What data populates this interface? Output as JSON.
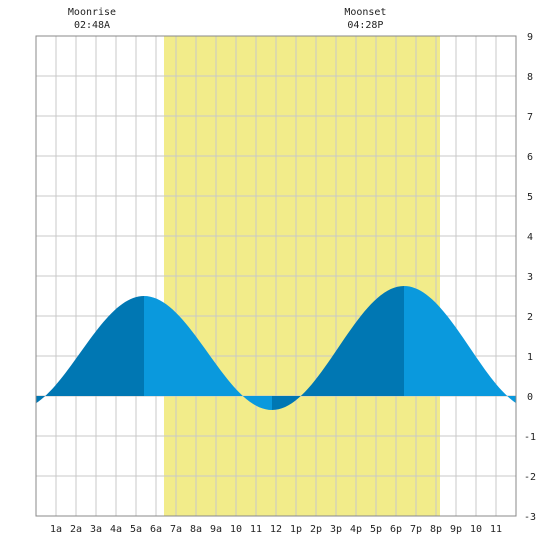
{
  "chart_data": {
    "type": "area",
    "title": "",
    "xlabel": "",
    "ylabel": "",
    "x_hours_range": [
      0,
      24
    ],
    "ylim": [
      -3,
      9
    ],
    "y_ticks": [
      -3,
      -2,
      -1,
      0,
      1,
      2,
      3,
      4,
      5,
      6,
      7,
      8,
      9
    ],
    "x_ticks": [
      {
        "hour": 1,
        "label": "1a"
      },
      {
        "hour": 2,
        "label": "2a"
      },
      {
        "hour": 3,
        "label": "3a"
      },
      {
        "hour": 4,
        "label": "4a"
      },
      {
        "hour": 5,
        "label": "5a"
      },
      {
        "hour": 6,
        "label": "6a"
      },
      {
        "hour": 7,
        "label": "7a"
      },
      {
        "hour": 8,
        "label": "8a"
      },
      {
        "hour": 9,
        "label": "9a"
      },
      {
        "hour": 10,
        "label": "10"
      },
      {
        "hour": 11,
        "label": "11"
      },
      {
        "hour": 12,
        "label": "12"
      },
      {
        "hour": 13,
        "label": "1p"
      },
      {
        "hour": 14,
        "label": "2p"
      },
      {
        "hour": 15,
        "label": "3p"
      },
      {
        "hour": 16,
        "label": "4p"
      },
      {
        "hour": 17,
        "label": "5p"
      },
      {
        "hour": 18,
        "label": "6p"
      },
      {
        "hour": 19,
        "label": "7p"
      },
      {
        "hour": 20,
        "label": "8p"
      },
      {
        "hour": 21,
        "label": "9p"
      },
      {
        "hour": 22,
        "label": "10"
      },
      {
        "hour": 23,
        "label": "11"
      }
    ],
    "daylight": {
      "start_hour": 6.4,
      "end_hour": 20.2
    },
    "tide_extremes": [
      {
        "hour": 5.4,
        "height": 2.5,
        "kind": "high"
      },
      {
        "hour": 11.8,
        "height": -0.35,
        "kind": "low"
      },
      {
        "hour": 18.4,
        "height": 2.75,
        "kind": "high"
      }
    ],
    "tide_at_edges": {
      "start_height": 0.3,
      "end_height": 0.25
    },
    "moon_events": [
      {
        "name": "Moonrise",
        "time": "02:48A",
        "hour": 2.8
      },
      {
        "name": "Moonset",
        "time": "04:28P",
        "hour": 16.47
      }
    ],
    "grid": true,
    "colors": {
      "daylight": "#f2ec8a",
      "tide_dark": "#0077b3",
      "tide_light": "#0a99dd",
      "grid": "#c8c8c8",
      "border": "#888888"
    }
  }
}
